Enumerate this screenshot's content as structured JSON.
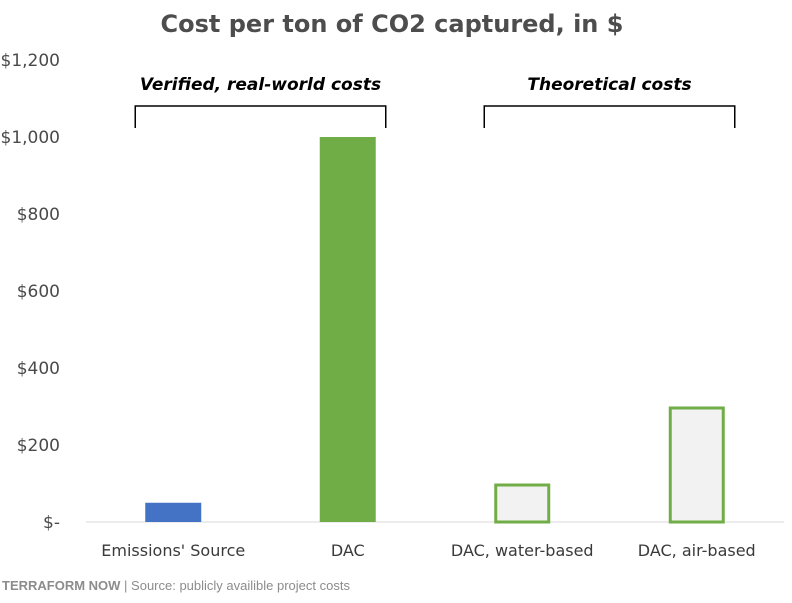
{
  "chart_data": {
    "type": "bar",
    "title": "Cost per ton of CO2 captured, in $",
    "categories": [
      "Emissions' Source",
      "DAC",
      "DAC, water-based",
      "DAC, air-based"
    ],
    "values": [
      50,
      1000,
      100,
      300
    ],
    "bar_styles": [
      "solid",
      "solid",
      "outline",
      "outline"
    ],
    "bar_colors": [
      "#4472c4",
      "#70ad47",
      "#70ad47",
      "#70ad47"
    ],
    "outline_fill": "#f2f2f2",
    "ylim": [
      0,
      1200
    ],
    "yticks": [
      0,
      200,
      400,
      600,
      800,
      1000,
      1200
    ],
    "ytick_labels": [
      "$-",
      "$200",
      "$400",
      "$600",
      "$800",
      "$1,000",
      "$1,200"
    ],
    "xlabel": "",
    "ylabel": "",
    "grid": false,
    "groups": [
      {
        "label": "Verified, real-world costs",
        "start": 0,
        "end": 1
      },
      {
        "label": "Theoretical costs",
        "start": 2,
        "end": 3
      }
    ]
  },
  "footer": {
    "brand": "TERRAFORM NOW",
    "text": " | Source: publicly availible project costs"
  }
}
